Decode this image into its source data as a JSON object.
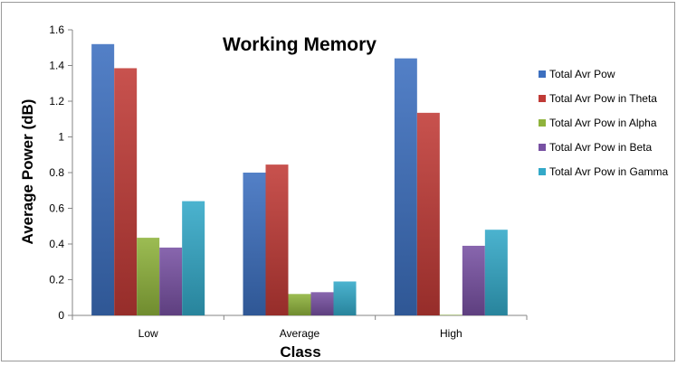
{
  "chart_data": {
    "type": "bar",
    "title": "Working Memory",
    "xlabel": "Class",
    "ylabel": "Average Power (dB)",
    "categories": [
      "Low",
      "Average",
      "High"
    ],
    "ylim": [
      0,
      1.6
    ],
    "yticks": [
      "0",
      "0.2",
      "0.4",
      "0.6",
      "0.8",
      "1",
      "1.2",
      "1.4",
      "1.6"
    ],
    "grid": false,
    "legend_position": "right",
    "series": [
      {
        "name": "Total Avr Pow",
        "color": "#3c6fbf",
        "values": [
          1.52,
          0.8,
          1.44
        ]
      },
      {
        "name": "Total Avr Pow in Theta",
        "color": "#c03a36",
        "values": [
          1.385,
          0.845,
          1.135
        ]
      },
      {
        "name": "Total Avr Pow in Alpha",
        "color": "#8fb33c",
        "values": [
          0.435,
          0.12,
          0.003
        ]
      },
      {
        "name": "Total Avr Pow in Beta",
        "color": "#7851a3",
        "values": [
          0.38,
          0.13,
          0.39
        ]
      },
      {
        "name": "Total Avr Pow in Gamma",
        "color": "#33a9c8",
        "values": [
          0.64,
          0.19,
          0.48
        ]
      }
    ]
  }
}
